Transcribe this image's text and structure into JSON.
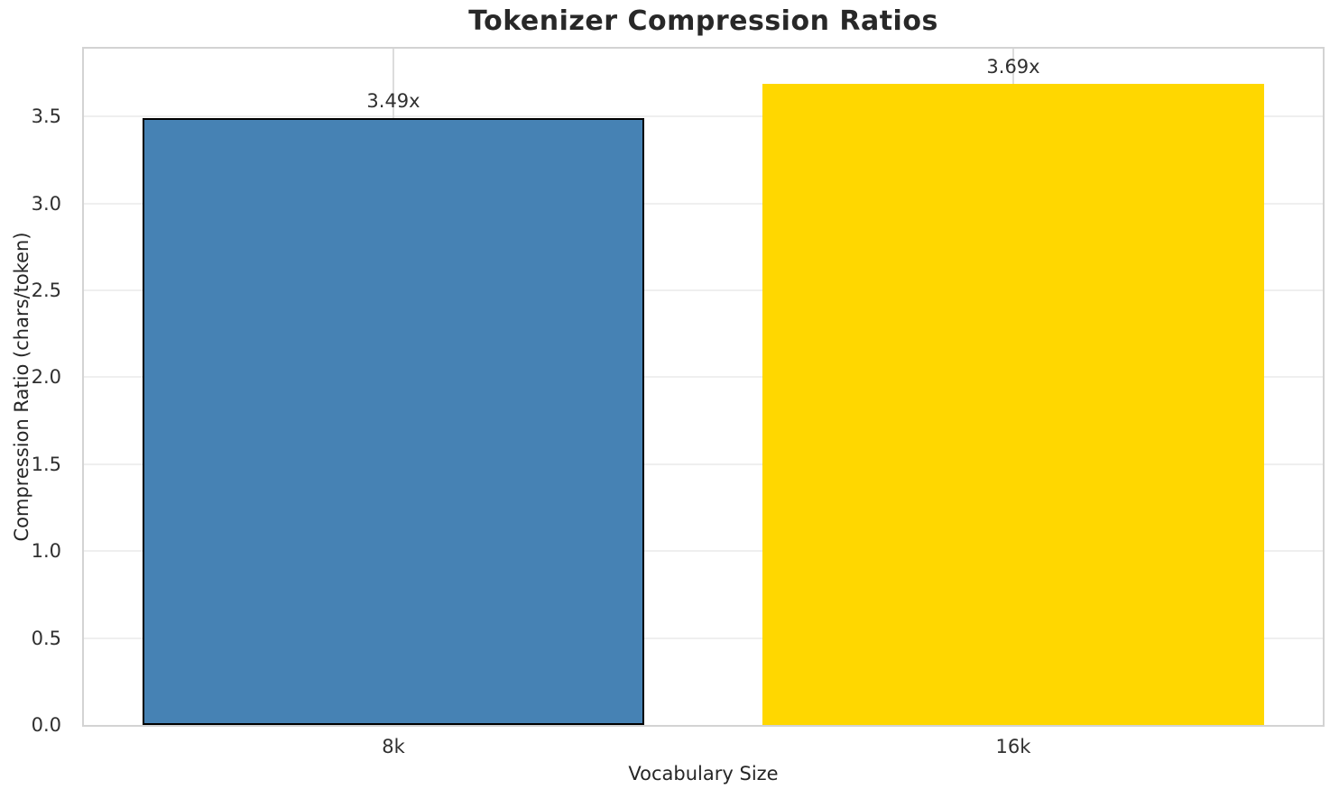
{
  "chart_data": {
    "type": "bar",
    "title": "Tokenizer Compression Ratios",
    "xlabel": "Vocabulary Size",
    "ylabel": "Compression Ratio (chars/token)",
    "categories": [
      "8k",
      "16k"
    ],
    "values": [
      3.49,
      3.69
    ],
    "series": [
      {
        "name": "8k",
        "value": 3.49,
        "label": "3.49x",
        "fill": "#4682B4",
        "edge": "#000000"
      },
      {
        "name": "16k",
        "value": 3.69,
        "label": "3.69x",
        "fill": "#FFD700",
        "edge": null
      }
    ],
    "ylim": [
      0,
      3.89
    ],
    "yticks": [
      0.0,
      0.5,
      1.0,
      1.5,
      2.0,
      2.5,
      3.0,
      3.5
    ],
    "ytick_labels": [
      "0.0",
      "0.5",
      "1.0",
      "1.5",
      "2.0",
      "2.5",
      "3.0",
      "3.5"
    ],
    "grid": true,
    "legend_position": "none",
    "colors": {
      "bar_blue": "#4682B4",
      "bar_gold": "#FFD700",
      "bar_edge": "#000000",
      "grid_horizontal": "#efefef",
      "grid_vertical": "#dcdcdc",
      "spine": "#d3d3d3",
      "text": "#262626",
      "background": "#ffffff"
    }
  }
}
